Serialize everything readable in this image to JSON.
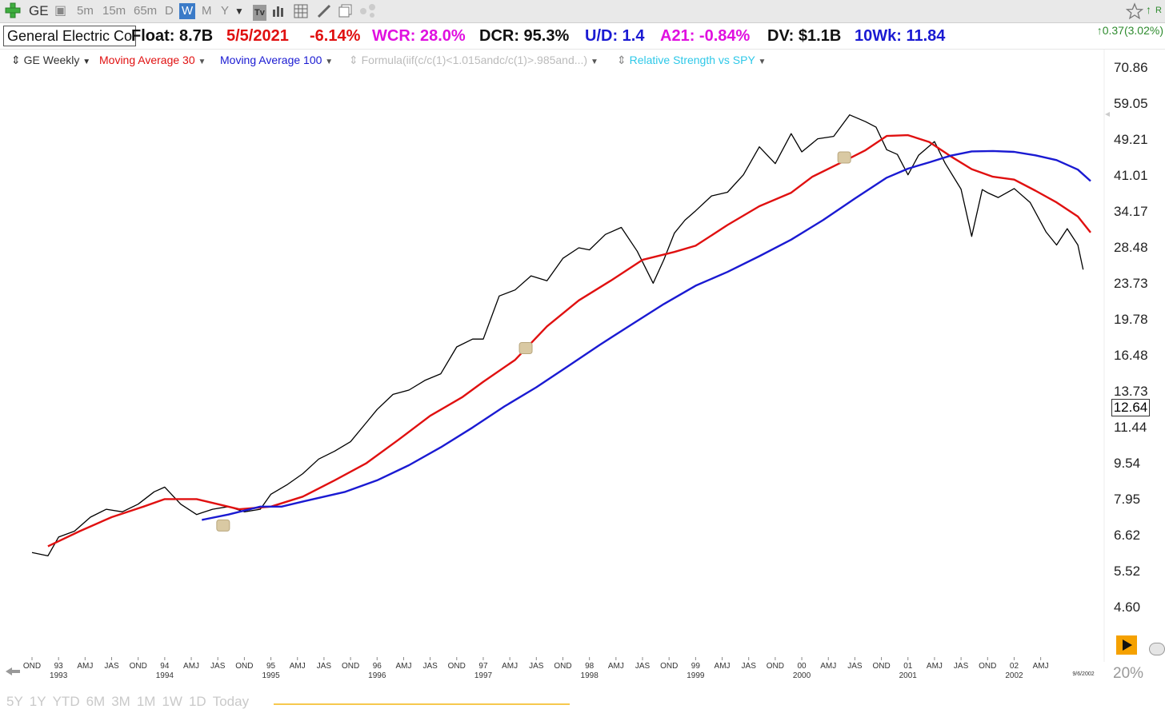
{
  "toolbar": {
    "symbol": "GE",
    "timeframes": [
      "5m",
      "15m",
      "65m",
      "D",
      "W",
      "M",
      "Y"
    ],
    "active_timeframe": "W",
    "icons": [
      "add-symbol-icon",
      "cube-icon",
      "dropdown-icon",
      "tv-icon",
      "bar-chart-icon",
      "grid-icon",
      "pencil-icon",
      "copy-icon",
      "share-icon",
      "star-icon"
    ]
  },
  "info": {
    "company": "General Electric Co",
    "float": "Float: 8.7B",
    "date": "5/5/2021",
    "change": "-6.14%",
    "wcr": "WCR: 28.0%",
    "dcr": "DCR: 95.3%",
    "ud": "U/D: 1.4",
    "a21": "A21: -0.84%",
    "dv": "DV: $1.1B",
    "tenwk": "10Wk: 11.84",
    "price_change": "0.37(3.02%)"
  },
  "legend": {
    "series1": "GE Weekly",
    "ma30": "Moving Average 30",
    "ma100": "Moving Average 100",
    "formula": "Formula(iif(c/c(1)<1.015andc/c(1)>.985and...)",
    "rs": "Relative Strength vs SPY"
  },
  "colors": {
    "price": "#000000",
    "ma30": "#e01010",
    "ma100": "#1a1ad2",
    "accent_green": "#2e8b2e"
  },
  "current_price_tag": "12.64",
  "axis_date_label": "9/6/2002",
  "zoom_percent": "20%",
  "range_buttons": [
    "5Y",
    "1Y",
    "YTD",
    "6M",
    "3M",
    "1M",
    "1W",
    "1D",
    "Today"
  ],
  "chart_data": {
    "type": "line",
    "title": "",
    "xlabel": "",
    "ylabel": "",
    "y_scale": "log",
    "ylim": [
      4.0,
      78.0
    ],
    "y_ticks": [
      "70.86",
      "59.05",
      "49.21",
      "41.01",
      "34.17",
      "28.48",
      "23.73",
      "19.78",
      "16.48",
      "13.73",
      "11.44",
      "9.54",
      "7.95",
      "6.62",
      "5.52",
      "4.60"
    ],
    "x_ticks": [
      {
        "label": "OND",
        "year": ""
      },
      {
        "label": "93",
        "year": "1993"
      },
      {
        "label": "AMJ",
        "year": ""
      },
      {
        "label": "JAS",
        "year": ""
      },
      {
        "label": "OND",
        "year": ""
      },
      {
        "label": "94",
        "year": "1994"
      },
      {
        "label": "AMJ",
        "year": ""
      },
      {
        "label": "JAS",
        "year": ""
      },
      {
        "label": "OND",
        "year": ""
      },
      {
        "label": "95",
        "year": "1995"
      },
      {
        "label": "AMJ",
        "year": ""
      },
      {
        "label": "JAS",
        "year": ""
      },
      {
        "label": "OND",
        "year": ""
      },
      {
        "label": "96",
        "year": "1996"
      },
      {
        "label": "AMJ",
        "year": ""
      },
      {
        "label": "JAS",
        "year": ""
      },
      {
        "label": "OND",
        "year": ""
      },
      {
        "label": "97",
        "year": "1997"
      },
      {
        "label": "AMJ",
        "year": ""
      },
      {
        "label": "JAS",
        "year": ""
      },
      {
        "label": "OND",
        "year": ""
      },
      {
        "label": "98",
        "year": "1998"
      },
      {
        "label": "AMJ",
        "year": ""
      },
      {
        "label": "JAS",
        "year": ""
      },
      {
        "label": "OND",
        "year": ""
      },
      {
        "label": "99",
        "year": "1999"
      },
      {
        "label": "AMJ",
        "year": ""
      },
      {
        "label": "JAS",
        "year": ""
      },
      {
        "label": "OND",
        "year": ""
      },
      {
        "label": "00",
        "year": "2000"
      },
      {
        "label": "AMJ",
        "year": ""
      },
      {
        "label": "JAS",
        "year": ""
      },
      {
        "label": "OND",
        "year": ""
      },
      {
        "label": "01",
        "year": "2001"
      },
      {
        "label": "AMJ",
        "year": ""
      },
      {
        "label": "JAS",
        "year": ""
      },
      {
        "label": "OND",
        "year": ""
      },
      {
        "label": "02",
        "year": "2002"
      },
      {
        "label": "AMJ",
        "year": ""
      }
    ],
    "x": [
      1992.75,
      1993.0,
      1993.25,
      1993.5,
      1993.75,
      1994.0,
      1994.25,
      1994.5,
      1994.75,
      1995.0,
      1995.25,
      1995.5,
      1995.75,
      1996.0,
      1996.25,
      1996.5,
      1996.75,
      1997.0,
      1997.25,
      1997.5,
      1997.75,
      1998.0,
      1998.25,
      1998.5,
      1998.75,
      1999.0,
      1999.25,
      1999.5,
      1999.75,
      2000.0,
      2000.25,
      2000.5,
      2000.75,
      2001.0,
      2001.25,
      2001.5,
      2001.75,
      2002.0,
      2002.25,
      2002.5,
      2002.65
    ],
    "series": [
      {
        "name": "GE Weekly",
        "x": [
          1992.75,
          1992.9,
          1993.0,
          1993.15,
          1993.3,
          1993.45,
          1993.6,
          1993.75,
          1993.9,
          1994.0,
          1994.15,
          1994.3,
          1994.45,
          1994.6,
          1994.75,
          1994.9,
          1995.0,
          1995.15,
          1995.3,
          1995.45,
          1995.6,
          1995.75,
          1995.9,
          1996.0,
          1996.15,
          1996.3,
          1996.45,
          1996.6,
          1996.75,
          1996.9,
          1997.0,
          1997.15,
          1997.3,
          1997.45,
          1997.6,
          1997.75,
          1997.9,
          1998.0,
          1998.15,
          1998.3,
          1998.45,
          1998.6,
          1998.7,
          1998.8,
          1998.9,
          1999.0,
          1999.15,
          1999.3,
          1999.45,
          1999.6,
          1999.75,
          1999.9,
          2000.0,
          2000.15,
          2000.3,
          2000.45,
          2000.6,
          2000.7,
          2000.8,
          2000.9,
          2001.0,
          2001.1,
          2001.25,
          2001.35,
          2001.5,
          2001.6,
          2001.7,
          2001.75,
          2001.85,
          2002.0,
          2002.15,
          2002.3,
          2002.4,
          2002.5,
          2002.6,
          2002.65
        ],
        "values": [
          6.1,
          6.0,
          6.6,
          6.8,
          7.3,
          7.6,
          7.5,
          7.8,
          8.3,
          8.5,
          7.8,
          7.4,
          7.6,
          7.7,
          7.5,
          7.6,
          8.2,
          8.6,
          9.1,
          9.8,
          10.2,
          10.7,
          11.8,
          12.6,
          13.6,
          13.9,
          14.6,
          15.1,
          17.3,
          18.0,
          18.0,
          22.4,
          23.1,
          24.8,
          24.2,
          27.1,
          28.6,
          28.3,
          30.6,
          31.7,
          28.1,
          23.9,
          26.9,
          30.8,
          32.9,
          34.5,
          37.2,
          37.9,
          41.4,
          47.7,
          43.8,
          51.0,
          46.5,
          49.7,
          50.3,
          56.1,
          54.2,
          52.7,
          47.0,
          45.9,
          41.4,
          45.7,
          49.0,
          43.9,
          38.5,
          30.3,
          38.4,
          37.8,
          36.9,
          38.6,
          36.0,
          31.0,
          29.0,
          31.5,
          29.0,
          25.6
        ]
      },
      {
        "name": "Moving Average 30",
        "x": [
          1992.9,
          1993.2,
          1993.5,
          1993.8,
          1994.0,
          1994.3,
          1994.5,
          1994.7,
          1995.0,
          1995.3,
          1995.6,
          1995.9,
          1996.2,
          1996.5,
          1996.8,
          1997.0,
          1997.3,
          1997.6,
          1997.9,
          1998.2,
          1998.5,
          1998.8,
          1999.0,
          1999.3,
          1999.6,
          1999.9,
          2000.1,
          2000.4,
          2000.6,
          2000.8,
          2001.0,
          2001.2,
          2001.4,
          2001.6,
          2001.8,
          2002.0,
          2002.2,
          2002.4,
          2002.6,
          2002.72
        ],
        "values": [
          6.3,
          6.8,
          7.3,
          7.7,
          8.0,
          8.0,
          7.8,
          7.6,
          7.7,
          8.1,
          8.8,
          9.6,
          10.8,
          12.2,
          13.4,
          14.5,
          16.2,
          19.2,
          21.9,
          24.2,
          26.9,
          28.0,
          28.9,
          32.1,
          35.3,
          37.8,
          41.0,
          44.4,
          46.9,
          50.4,
          50.6,
          48.9,
          45.5,
          42.6,
          41.0,
          40.4,
          38.2,
          36.0,
          33.5,
          30.9
        ]
      },
      {
        "name": "Moving Average 100",
        "x": [
          1994.35,
          1994.6,
          1994.9,
          1995.1,
          1995.4,
          1995.7,
          1996.0,
          1996.3,
          1996.6,
          1996.9,
          1997.2,
          1997.5,
          1997.8,
          1998.1,
          1998.4,
          1998.7,
          1999.0,
          1999.3,
          1999.6,
          1999.9,
          2000.2,
          2000.5,
          2000.8,
          2001.0,
          2001.2,
          2001.4,
          2001.6,
          2001.8,
          2002.0,
          2002.2,
          2002.4,
          2002.6,
          2002.72
        ],
        "values": [
          7.2,
          7.4,
          7.7,
          7.7,
          8.0,
          8.3,
          8.8,
          9.5,
          10.4,
          11.5,
          12.8,
          14.1,
          15.7,
          17.5,
          19.4,
          21.5,
          23.6,
          25.3,
          27.4,
          29.8,
          32.9,
          36.7,
          40.8,
          42.7,
          44.1,
          45.6,
          46.6,
          46.7,
          46.5,
          45.7,
          44.6,
          42.5,
          40.1
        ]
      }
    ]
  }
}
